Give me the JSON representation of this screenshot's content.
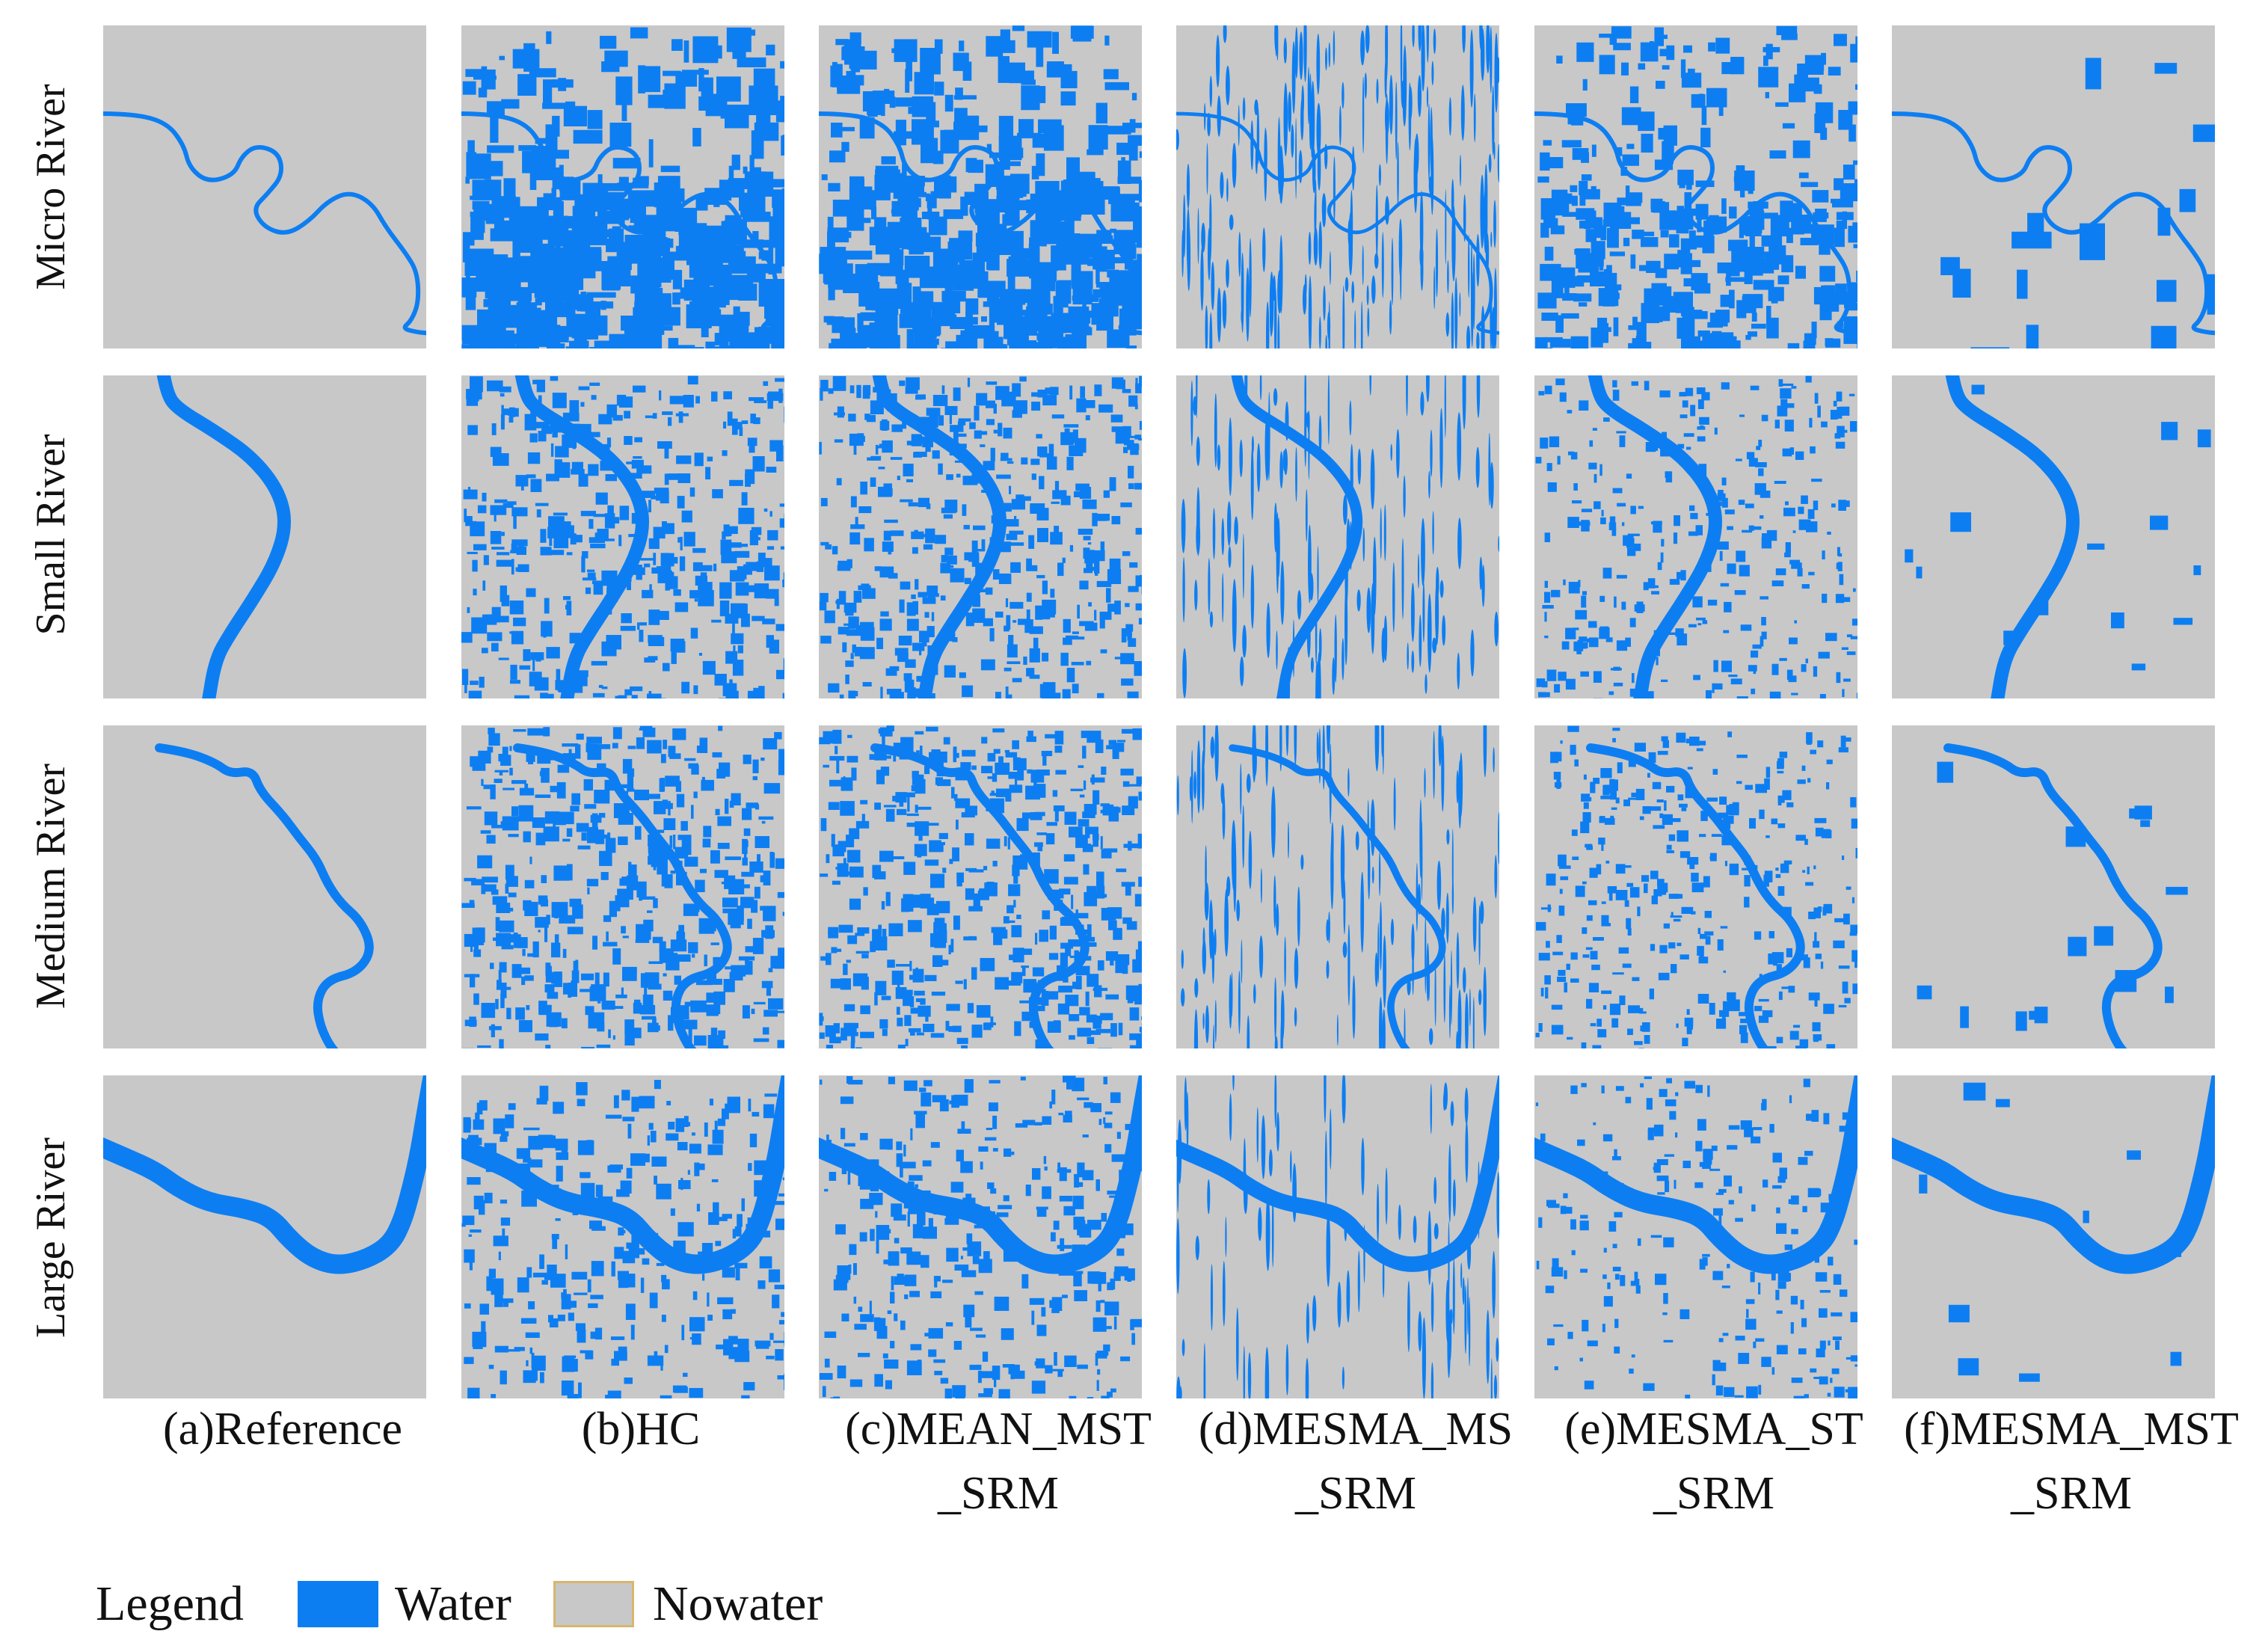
{
  "rows": [
    {
      "key": "micro",
      "label": "Micro River"
    },
    {
      "key": "small",
      "label": "Small River"
    },
    {
      "key": "medium",
      "label": "Medium River"
    },
    {
      "key": "large",
      "label": "Large River"
    }
  ],
  "columns": [
    {
      "key": "a",
      "line1": "(a)Reference",
      "line2": ""
    },
    {
      "key": "b",
      "line1": "(b)HC",
      "line2": ""
    },
    {
      "key": "c",
      "line1": "(c)MEAN_MST",
      "line2": "_SRM"
    },
    {
      "key": "d",
      "line1": "(d)MESMA_MS",
      "line2": "_SRM"
    },
    {
      "key": "e",
      "line1": "(e)MESMA_ST",
      "line2": "_SRM"
    },
    {
      "key": "f",
      "line1": "(f)MESMA_MST",
      "line2": "_SRM"
    }
  ],
  "legend": {
    "title": "Legend",
    "items": [
      {
        "label": "Water",
        "color": "#0d7ef2"
      },
      {
        "label": "Nowater",
        "color": "#c8c8c8"
      }
    ]
  },
  "colors": {
    "water": "#0d7ef2",
    "nowater": "#c8c8c8",
    "background": "#ffffff"
  }
}
